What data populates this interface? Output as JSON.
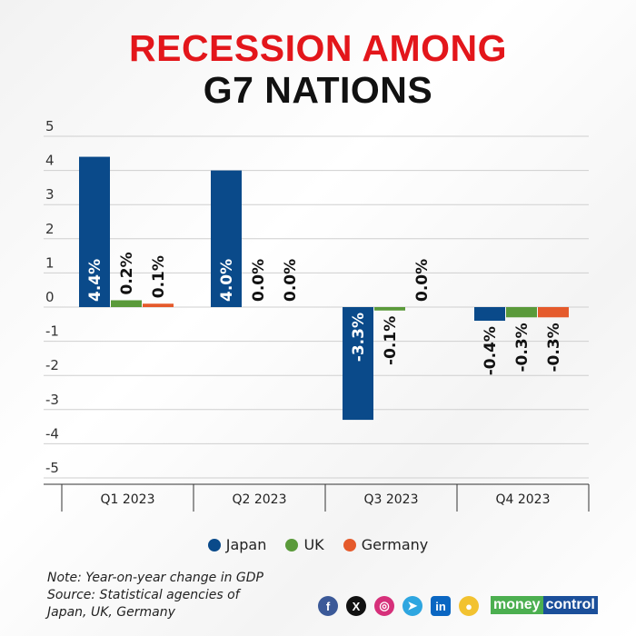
{
  "title_line1": "RECESSION AMONG",
  "title_line2": "G7 NATIONS",
  "chart_data": {
    "type": "bar",
    "title": "RECESSION AMONG G7 NATIONS",
    "categories": [
      "Q1 2023",
      "Q2 2023",
      "Q3 2023",
      "Q4 2023"
    ],
    "series": [
      {
        "name": "Japan",
        "color": "#0a4a8a",
        "values": [
          4.4,
          4.0,
          -3.3,
          -0.4
        ],
        "labels": [
          "4.4%",
          "4.0%",
          "-3.3%",
          "-0.4%"
        ]
      },
      {
        "name": "UK",
        "color": "#5a9a3a",
        "values": [
          0.2,
          0.0,
          -0.1,
          -0.3
        ],
        "labels": [
          "0.2%",
          "0.0%",
          "-0.1%",
          "-0.3%"
        ]
      },
      {
        "name": "Germany",
        "color": "#e55a2b",
        "values": [
          0.1,
          0.0,
          0.0,
          -0.3
        ],
        "labels": [
          "0.1%",
          "0.0%",
          "0.0%",
          "-0.3%"
        ]
      }
    ],
    "yticks": [
      5,
      4,
      3,
      2,
      1,
      0,
      -1,
      -2,
      -3,
      -4,
      -5
    ],
    "ylim": [
      -5,
      5
    ],
    "grid": true,
    "legend": "bottom"
  },
  "note": "Note: Year-on-year change in GDP",
  "source1": "Source: Statistical agencies of",
  "source2": "Japan, UK, Germany",
  "social": [
    "facebook",
    "x",
    "instagram",
    "telegram",
    "linkedin",
    "koo"
  ],
  "brand": {
    "a": "money",
    "b": "control"
  }
}
